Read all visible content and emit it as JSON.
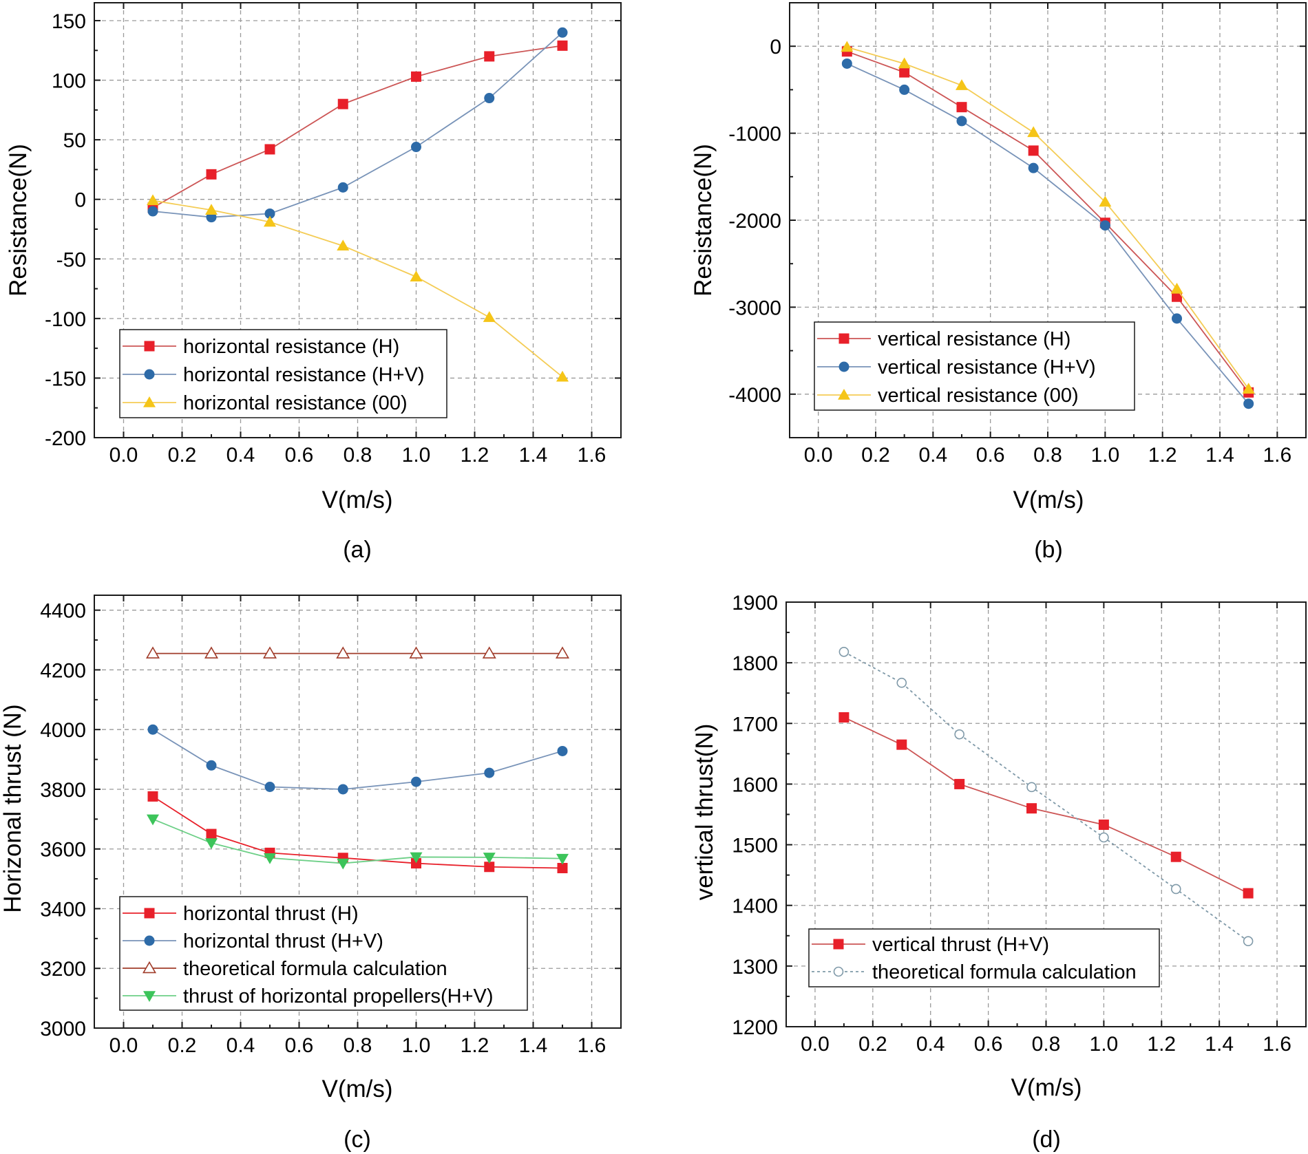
{
  "colors": {
    "red": "#e8202a",
    "red_line": "#cc5555",
    "blue": "#2e6ba8",
    "blue_line": "#7893b8",
    "yellow": "#f5c518",
    "yellow_line": "#f4cc55",
    "brown": "#a03c2a",
    "green": "#3cc45a",
    "green_line": "#6ccf86",
    "teal_dashed": "#7f99a8"
  },
  "chart_data": [
    {
      "id": "a",
      "type": "line",
      "caption": "(a)",
      "xlabel": "V(m/s)",
      "ylabel": "Resistance(N)",
      "xlim": [
        -0.1,
        1.7
      ],
      "ylim": [
        -200,
        165
      ],
      "xticks": [
        0.0,
        0.2,
        0.4,
        0.6,
        0.8,
        1.0,
        1.2,
        1.4,
        1.6
      ],
      "xtick_labels": [
        "0.0",
        "0.2",
        "0.4",
        "0.6",
        "0.8",
        "1.0",
        "1.2",
        "1.4",
        "1.6"
      ],
      "yticks": [
        -200,
        -150,
        -100,
        -50,
        0,
        50,
        100,
        150
      ],
      "ytick_labels": [
        "-200",
        "-150",
        "-100",
        "-50",
        "0",
        "50",
        "100",
        "150"
      ],
      "grid": true,
      "legend_position": "bottom-left",
      "series": [
        {
          "name": "horizontal resistance (H)",
          "marker": "square",
          "color": "red",
          "line": "red_line",
          "x": [
            0.1,
            0.3,
            0.5,
            0.75,
            1.0,
            1.25,
            1.5
          ],
          "values": [
            -7,
            21,
            42,
            80,
            103,
            120,
            129
          ]
        },
        {
          "name": "horizontal resistance (H+V)",
          "marker": "circle",
          "color": "blue",
          "line": "blue_line",
          "x": [
            0.1,
            0.3,
            0.5,
            0.75,
            1.0,
            1.25,
            1.5
          ],
          "values": [
            -10,
            -15,
            -12,
            10,
            44,
            85,
            140
          ]
        },
        {
          "name": "horizontal resistance (00)",
          "marker": "triangle",
          "color": "yellow",
          "line": "yellow_line",
          "x": [
            0.1,
            0.3,
            0.5,
            0.75,
            1.0,
            1.25,
            1.5
          ],
          "values": [
            -1,
            -9,
            -19,
            -39,
            -65,
            -99,
            -149
          ]
        }
      ]
    },
    {
      "id": "b",
      "type": "line",
      "caption": "(b)",
      "xlabel": "V(m/s)",
      "ylabel": "Resistance(N)",
      "xlim": [
        -0.1,
        1.7
      ],
      "ylim": [
        -4500,
        500
      ],
      "xticks": [
        0.0,
        0.2,
        0.4,
        0.6,
        0.8,
        1.0,
        1.2,
        1.4,
        1.6
      ],
      "xtick_labels": [
        "0.0",
        "0.2",
        "0.4",
        "0.6",
        "0.8",
        "1.0",
        "1.2",
        "1.4",
        "1.6"
      ],
      "yticks": [
        -4000,
        -3000,
        -2000,
        -1000,
        0
      ],
      "ytick_labels": [
        "-4000",
        "-3000",
        "-2000",
        "-1000",
        "0"
      ],
      "grid": true,
      "legend_position": "bottom-left",
      "series": [
        {
          "name": "vertical resistance (H)",
          "marker": "square",
          "color": "red",
          "line": "red_line",
          "x": [
            0.1,
            0.3,
            0.5,
            0.75,
            1.0,
            1.25,
            1.5
          ],
          "values": [
            -60,
            -300,
            -700,
            -1200,
            -2030,
            -2880,
            -3980
          ]
        },
        {
          "name": "vertical resistance (H+V)",
          "marker": "circle",
          "color": "blue",
          "line": "blue_line",
          "x": [
            0.1,
            0.3,
            0.5,
            0.75,
            1.0,
            1.25,
            1.5
          ],
          "values": [
            -200,
            -500,
            -860,
            -1400,
            -2060,
            -3130,
            -4110
          ]
        },
        {
          "name": "vertical resistance (00)",
          "marker": "triangle",
          "color": "yellow",
          "line": "yellow_line",
          "x": [
            0.1,
            0.3,
            0.5,
            0.75,
            1.0,
            1.25,
            1.5
          ],
          "values": [
            -10,
            -200,
            -450,
            -990,
            -1790,
            -2790,
            -3940
          ]
        }
      ]
    },
    {
      "id": "c",
      "type": "line",
      "caption": "(c)",
      "xlabel": "V(m/s)",
      "ylabel": "Horizonal thrust (N)",
      "xlim": [
        -0.1,
        1.7
      ],
      "ylim": [
        3000,
        4450
      ],
      "xticks": [
        0.0,
        0.2,
        0.4,
        0.6,
        0.8,
        1.0,
        1.2,
        1.4,
        1.6
      ],
      "xtick_labels": [
        "0.0",
        "0.2",
        "0.4",
        "0.6",
        "0.8",
        "1.0",
        "1.2",
        "1.4",
        "1.6"
      ],
      "yticks": [
        3000,
        3200,
        3400,
        3600,
        3800,
        4000,
        4200,
        4400
      ],
      "ytick_labels": [
        "3000",
        "3200",
        "3400",
        "3600",
        "3800",
        "4000",
        "4200",
        "4400"
      ],
      "grid": true,
      "legend_position": "bottom-left",
      "series": [
        {
          "name": "horizontal thrust (H)",
          "marker": "square",
          "color": "red",
          "line": "red",
          "x": [
            0.1,
            0.3,
            0.5,
            0.75,
            1.0,
            1.25,
            1.5
          ],
          "values": [
            3776,
            3650,
            3587,
            3570,
            3552,
            3540,
            3536
          ]
        },
        {
          "name": "horizontal thrust (H+V)",
          "marker": "circle",
          "color": "blue",
          "line": "blue_line",
          "x": [
            0.1,
            0.3,
            0.5,
            0.75,
            1.0,
            1.25,
            1.5
          ],
          "values": [
            4000,
            3880,
            3808,
            3800,
            3825,
            3855,
            3928
          ]
        },
        {
          "name": "theoretical formula calculation",
          "marker": "triangle-open",
          "color": "brown",
          "line": "brown",
          "x": [
            0.1,
            0.3,
            0.5,
            0.75,
            1.0,
            1.25,
            1.5
          ],
          "values": [
            4255,
            4255,
            4255,
            4255,
            4255,
            4255,
            4255
          ]
        },
        {
          "name": "thrust of horizontal propellers(H+V)",
          "marker": "triangle-down",
          "color": "green",
          "line": "green_line",
          "x": [
            0.1,
            0.3,
            0.5,
            0.75,
            1.0,
            1.25,
            1.5
          ],
          "values": [
            3700,
            3620,
            3570,
            3552,
            3573,
            3572,
            3568
          ]
        }
      ]
    },
    {
      "id": "d",
      "type": "line",
      "caption": "(d)",
      "xlabel": "V(m/s)",
      "ylabel": "vertical thrust(N)",
      "xlim": [
        -0.1,
        1.7
      ],
      "ylim": [
        1200,
        1900
      ],
      "xticks": [
        0.0,
        0.2,
        0.4,
        0.6,
        0.8,
        1.0,
        1.2,
        1.4,
        1.6
      ],
      "xtick_labels": [
        "0.0",
        "0.2",
        "0.4",
        "0.6",
        "0.8",
        "1.0",
        "1.2",
        "1.4",
        "1.6"
      ],
      "yticks": [
        1200,
        1300,
        1400,
        1500,
        1600,
        1700,
        1800,
        1900
      ],
      "ytick_labels": [
        "1200",
        "1300",
        "1400",
        "1500",
        "1600",
        "1700",
        "1800",
        "1900"
      ],
      "grid": true,
      "legend_position": "bottom-left",
      "series": [
        {
          "name": "vertical thrust (H+V)",
          "marker": "square",
          "color": "red",
          "line": "red_line",
          "x": [
            0.1,
            0.3,
            0.5,
            0.75,
            1.0,
            1.25,
            1.5
          ],
          "values": [
            1710,
            1665,
            1600,
            1560,
            1533,
            1480,
            1420
          ]
        },
        {
          "name": "theoretical formula calculation",
          "marker": "circle-open",
          "color": "teal_dashed",
          "line": "teal_dashed",
          "dashed": true,
          "x": [
            0.1,
            0.3,
            0.5,
            0.75,
            1.0,
            1.25,
            1.5
          ],
          "values": [
            1818,
            1767,
            1682,
            1595,
            1512,
            1427,
            1341
          ]
        }
      ]
    }
  ]
}
